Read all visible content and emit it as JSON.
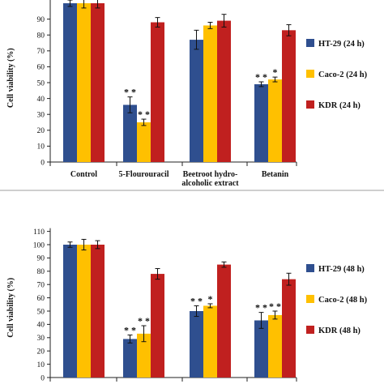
{
  "chart_data": [
    {
      "type": "bar",
      "title": "",
      "xlabel": "",
      "ylabel": "Cell viability (%)",
      "ylim": [
        0,
        110
      ],
      "yticks": [
        0,
        10,
        20,
        30,
        40,
        50,
        60,
        70,
        80,
        90
      ],
      "grid": false,
      "legend_position": "right",
      "categories": [
        [
          "Control"
        ],
        [
          "5-Flourouracil"
        ],
        [
          "Beetroot hydro-",
          "alcoholic extract"
        ],
        [
          "Betanin"
        ]
      ],
      "series": [
        {
          "name": "HT-29 (24 h)",
          "color": "#2f4f8f",
          "values": [
            100,
            36,
            77,
            49
          ],
          "errors": [
            2,
            5,
            6,
            1.5
          ]
        },
        {
          "name": "Caco-2 (24 h)",
          "color": "#ffc000",
          "values": [
            100,
            25,
            86,
            52
          ],
          "errors": [
            3,
            2,
            2,
            1.5
          ]
        },
        {
          "name": "KDR (24 h)",
          "color": "#c0201f",
          "values": [
            100,
            88,
            89,
            83
          ],
          "errors": [
            3,
            3,
            4,
            3.5
          ]
        }
      ],
      "annotations": [
        {
          "category": 1,
          "series": 0,
          "text": "* *"
        },
        {
          "category": 1,
          "series": 1,
          "text": "* *"
        },
        {
          "category": 3,
          "series": 0,
          "text": "* *"
        },
        {
          "category": 3,
          "series": 1,
          "text": "*"
        }
      ]
    },
    {
      "type": "bar",
      "title": "",
      "xlabel": "",
      "ylabel": "Cell viability (%)",
      "ylim": [
        0,
        110
      ],
      "yticks": [
        0,
        10,
        20,
        30,
        40,
        50,
        60,
        70,
        80,
        90,
        100,
        110
      ],
      "grid": false,
      "legend_position": "right",
      "categories": [
        [
          ""
        ],
        [
          ""
        ],
        [
          ""
        ],
        [
          ""
        ]
      ],
      "series": [
        {
          "name": "HT-29 (48 h)",
          "color": "#2f4f8f",
          "values": [
            100,
            29,
            50,
            43
          ],
          "errors": [
            2,
            3,
            4,
            6
          ]
        },
        {
          "name": "Caco-2 (48 h)",
          "color": "#ffc000",
          "values": [
            100,
            33,
            54,
            47
          ],
          "errors": [
            4,
            6,
            1.5,
            3
          ]
        },
        {
          "name": "KDR (48 h)",
          "color": "#c0201f",
          "values": [
            100,
            78,
            85,
            74
          ],
          "errors": [
            3,
            4,
            2,
            4.5
          ]
        }
      ],
      "annotations": [
        {
          "category": 1,
          "series": 0,
          "text": "* *"
        },
        {
          "category": 1,
          "series": 1,
          "text": "* *"
        },
        {
          "category": 2,
          "series": 0,
          "text": "* *"
        },
        {
          "category": 2,
          "series": 1,
          "text": "*"
        },
        {
          "category": 3,
          "series": 0,
          "text": "* *"
        },
        {
          "category": 3,
          "series": 1,
          "text": "* *"
        }
      ]
    }
  ]
}
